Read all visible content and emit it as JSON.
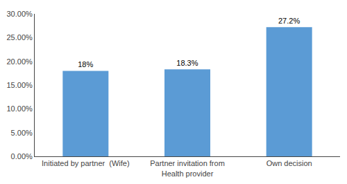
{
  "chart_data": {
    "type": "bar",
    "categories": [
      "Initiated by partner  (Wife)",
      "Partner invitation from\nHealth provider",
      "Own decision"
    ],
    "values": [
      18.0,
      18.3,
      27.2
    ],
    "value_labels": [
      "18%",
      "18.3%",
      "27.2%"
    ],
    "data_labels": true,
    "color": "#5B9BD5",
    "ylim": [
      0,
      30
    ],
    "yticks": [
      {
        "value": 0,
        "label": "0.00%"
      },
      {
        "value": 5,
        "label": "5.00%"
      },
      {
        "value": 10,
        "label": "10.00%"
      },
      {
        "value": 15,
        "label": "15.00%"
      },
      {
        "value": 20,
        "label": "20.00%"
      },
      {
        "value": 25,
        "label": "25.00%"
      },
      {
        "value": 30,
        "label": "30.00%"
      }
    ],
    "grid": false
  }
}
